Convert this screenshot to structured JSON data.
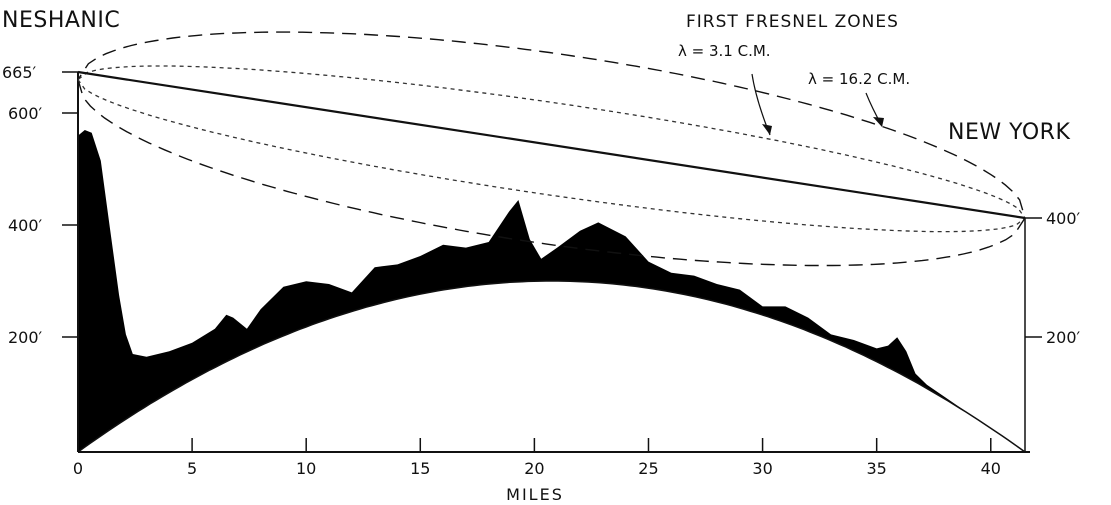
{
  "labels": {
    "origin": "NESHANIC",
    "destination": "NEW YORK",
    "zones_title": "FIRST FRESNEL ZONES",
    "lambda_short": "λ = 3.1 C.M.",
    "lambda_long": "λ = 16.2 C.M.",
    "x_axis": "MILES"
  },
  "chart_data": {
    "type": "area",
    "xlabel": "MILES",
    "x_ticks": [
      0,
      5,
      10,
      15,
      20,
      25,
      30,
      35,
      40
    ],
    "x_tick_labels": [
      "0",
      "5",
      "10",
      "15",
      "20",
      "25",
      "30",
      "35",
      "40"
    ],
    "x_range": [
      0,
      41.5
    ],
    "left_elevation_labels": [
      {
        "value": 665,
        "label": "665′"
      },
      {
        "value": 600,
        "label": "600′"
      },
      {
        "value": 400,
        "label": "400′"
      },
      {
        "value": 200,
        "label": "200′"
      }
    ],
    "right_elevation_labels": [
      {
        "value": 400,
        "label": "400′"
      },
      {
        "value": 200,
        "label": "200′"
      }
    ],
    "endpoints": {
      "origin": {
        "mile": 0,
        "elevation_ft": 665
      },
      "destination": {
        "mile": 41.5,
        "elevation_ft": 400
      }
    },
    "terrain_profile": {
      "miles": [
        0,
        0.3,
        0.6,
        1.0,
        1.4,
        1.8,
        2.1,
        2.4,
        3,
        4,
        5,
        6,
        6.5,
        6.8,
        7.4,
        8,
        9,
        10,
        11,
        12,
        13,
        14,
        15,
        16,
        17,
        18,
        18.9,
        19.3,
        19.8,
        20.3,
        21,
        22,
        22.8,
        24,
        25,
        26,
        27,
        28,
        29,
        30,
        31,
        32,
        33,
        34,
        35,
        35.5,
        35.9,
        36.3,
        36.7,
        37.2,
        41.5
      ],
      "elevation_ft": [
        565,
        575,
        570,
        520,
        400,
        280,
        210,
        175,
        170,
        180,
        195,
        220,
        245,
        240,
        220,
        255,
        295,
        305,
        300,
        285,
        330,
        335,
        350,
        370,
        365,
        375,
        430,
        450,
        380,
        345,
        365,
        395,
        410,
        385,
        340,
        320,
        315,
        300,
        290,
        260,
        260,
        240,
        210,
        200,
        185,
        190,
        205,
        180,
        140,
        120,
        0
      ]
    }
  }
}
